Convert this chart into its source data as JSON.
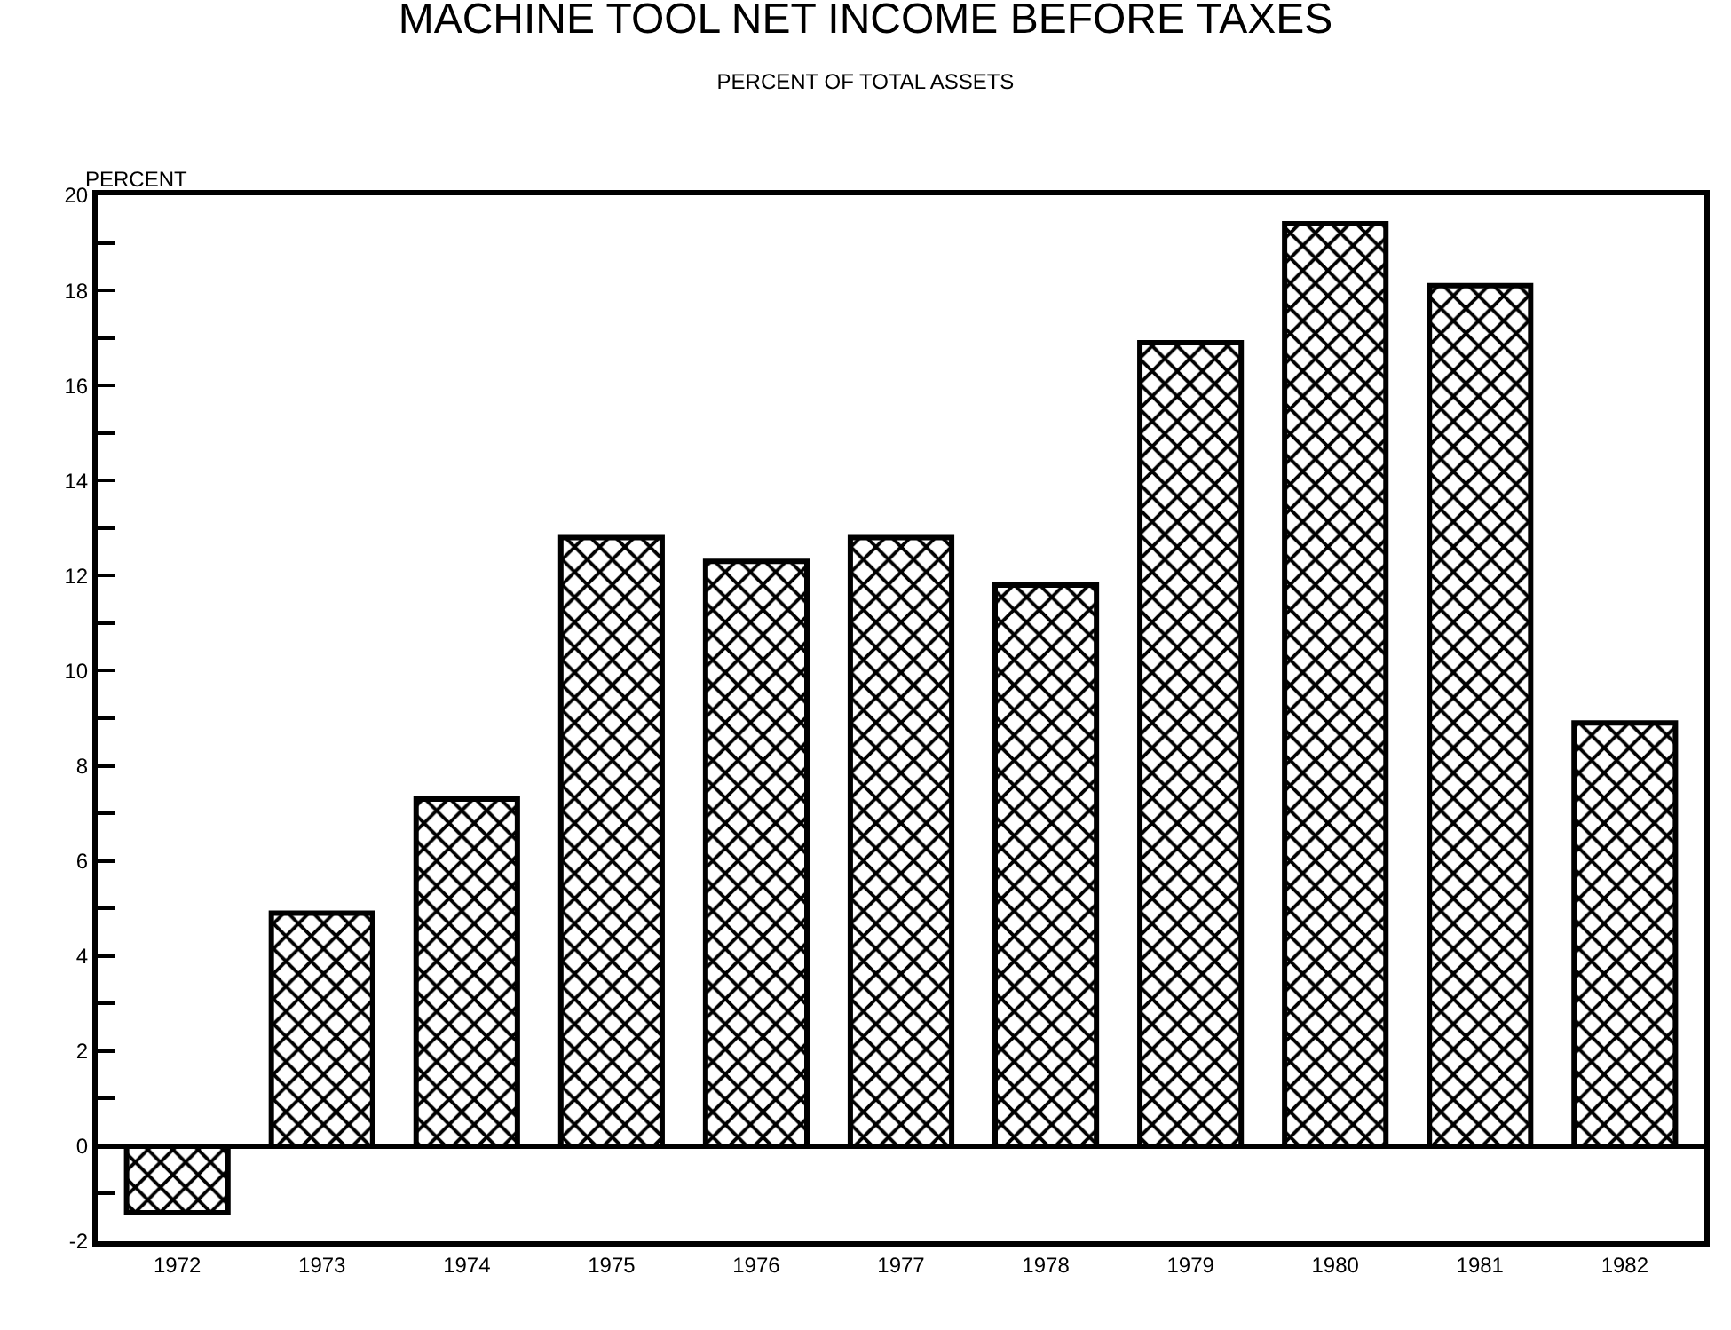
{
  "chart_data": {
    "type": "bar",
    "title": "MACHINE TOOL NET INCOME BEFORE TAXES",
    "subtitle": "PERCENT OF TOTAL ASSETS",
    "ylabel": "PERCENT",
    "categories": [
      "1972",
      "1973",
      "1974",
      "1975",
      "1976",
      "1977",
      "1978",
      "1979",
      "1980",
      "1981",
      "1982"
    ],
    "values": [
      -1.4,
      4.9,
      7.3,
      12.8,
      12.3,
      12.8,
      11.8,
      16.9,
      19.4,
      18.1,
      8.9
    ],
    "color": "#000000",
    "ylim": [
      -2,
      20
    ],
    "yticks": [
      -2,
      {
        "value": -1,
        "label": null
      },
      0,
      {
        "value": 1,
        "label": null
      },
      2,
      {
        "value": 3,
        "label": null
      },
      4,
      {
        "value": 5,
        "label": null
      },
      6,
      {
        "value": 7,
        "label": null
      },
      8,
      {
        "value": 9,
        "label": null
      },
      10,
      {
        "value": 11,
        "label": null
      },
      12,
      {
        "value": 13,
        "label": null
      },
      14,
      {
        "value": 15,
        "label": null
      },
      16,
      {
        "value": 17,
        "label": null
      },
      18,
      {
        "value": 19,
        "label": null
      },
      20
    ],
    "ref_lines": [
      {
        "axis": "y",
        "value": 0,
        "color": "#000000"
      }
    ]
  }
}
